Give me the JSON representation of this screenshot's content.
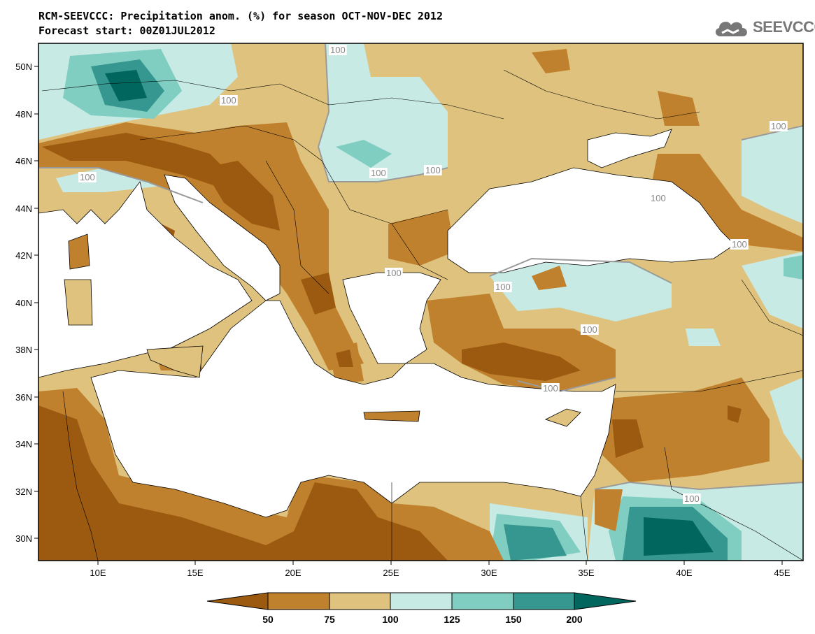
{
  "header": {
    "line1": "RCM-SEEVCCC: Precipitation anom. (%) for season OCT-NOV-DEC 2012",
    "line2": "Forecast start: 00Z01JUL2012",
    "logo_text": "SEEVCCC"
  },
  "map": {
    "lat_ticks": [
      "50N",
      "48N",
      "46N",
      "44N",
      "42N",
      "40N",
      "38N",
      "36N",
      "34N",
      "32N",
      "30N"
    ],
    "lon_ticks": [
      "10E",
      "15E",
      "20E",
      "25E",
      "30E",
      "35E",
      "40E",
      "45E"
    ],
    "contour_labels": [
      "100",
      "100",
      "100",
      "100",
      "100",
      "100",
      "100",
      "100",
      "100",
      "100",
      "100",
      "100",
      "100"
    ]
  },
  "colorbar": {
    "colors": {
      "lt50": "#9c5a11",
      "50_75": "#bf812d",
      "75_100": "#dfc27d",
      "100_125": "#c7eae5",
      "125_150": "#80cdc1",
      "150_200": "#35978f",
      "gt200": "#01665e"
    },
    "labels": [
      "50",
      "75",
      "100",
      "125",
      "150",
      "200"
    ]
  }
}
